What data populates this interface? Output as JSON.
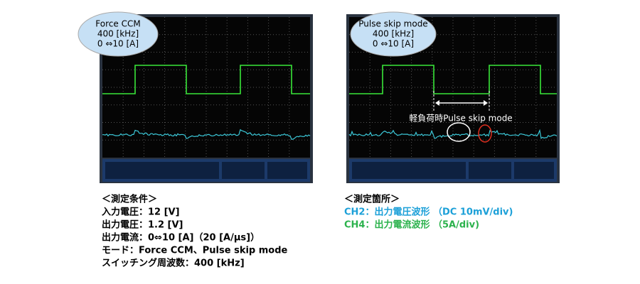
{
  "left_panel": {
    "bubble": [
      "Force CCM",
      "400 [kHz]",
      "0 ⇔10 [A]"
    ],
    "conditions": {
      "heading": "＜測定条件＞",
      "lines": [
        "入力電圧：12 [V]",
        "出力電圧：1.2 [V]",
        "出力電流：0⇔10 [A]（20 [A/μs]）",
        "モード：Force CCM、Pulse skip mode",
        "スイッチング周波数：400 [kHz]"
      ]
    }
  },
  "right_panel": {
    "bubble": [
      "Pulse skip mode",
      "400 [kHz]",
      "0 ⇔10 [A]"
    ],
    "annotation": "軽負荷時Pulse skip mode",
    "measurements": {
      "heading": "＜測定箇所＞",
      "lines": [
        "CH2：出力電圧波形 （DC 10mV/div)",
        "CH4：出力電流波形 （5A/div)"
      ]
    }
  }
}
